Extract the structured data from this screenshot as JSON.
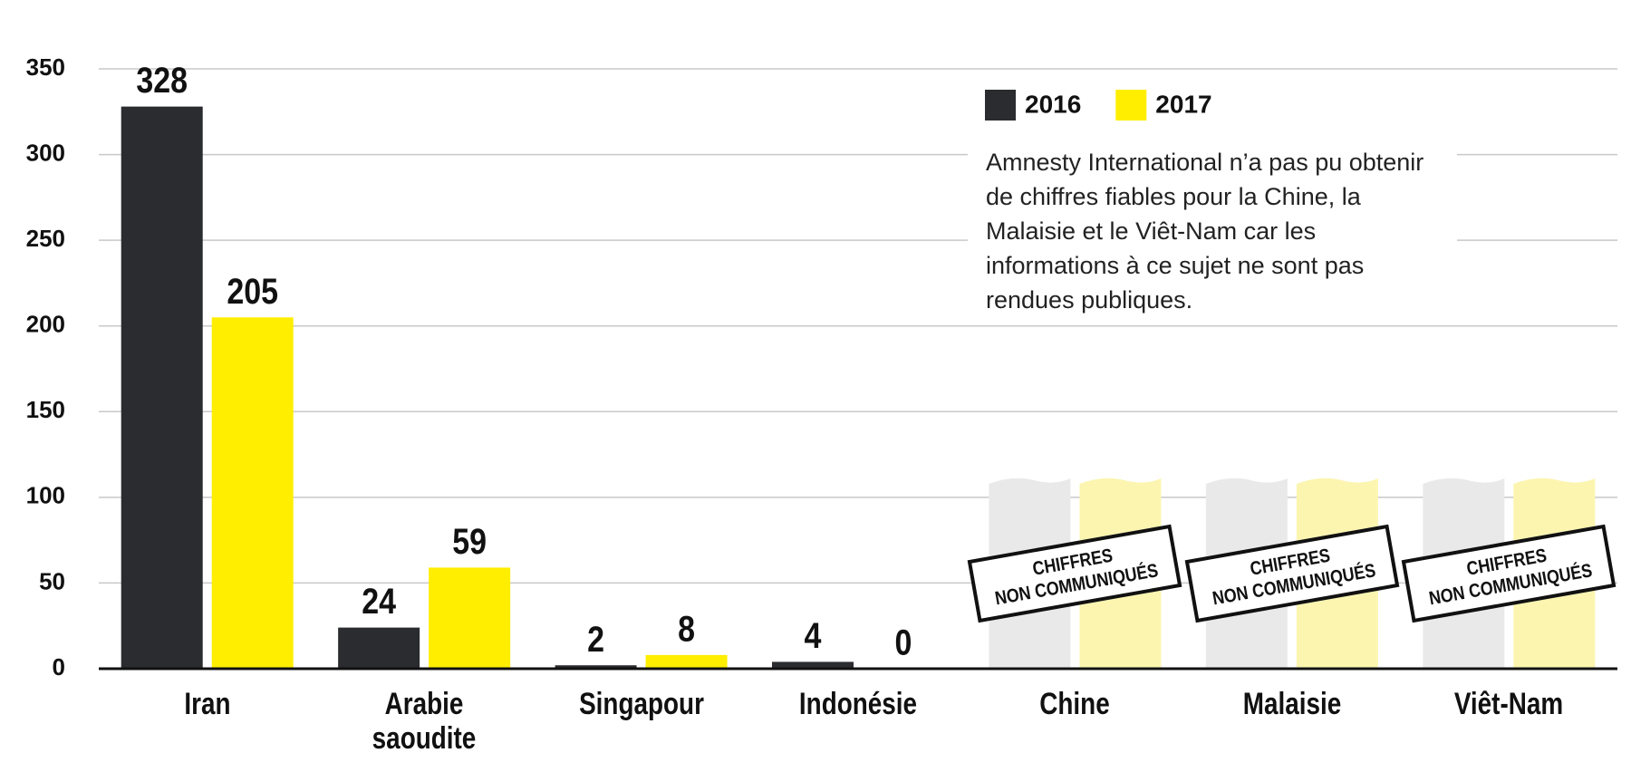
{
  "chart_data": {
    "type": "bar",
    "categories": [
      "Iran",
      "Arabie saoudite",
      "Singapour",
      "Indonésie",
      "Chine",
      "Malaisie",
      "Viêt-Nam"
    ],
    "series": [
      {
        "name": "2016",
        "color": "#2a2c2f",
        "values": [
          328,
          24,
          2,
          4,
          null,
          null,
          null
        ]
      },
      {
        "name": "2017",
        "color": "#ffee00",
        "values": [
          205,
          59,
          8,
          0,
          null,
          null,
          null
        ]
      }
    ],
    "ylim": [
      0,
      350
    ],
    "yticks": [
      0,
      50,
      100,
      150,
      200,
      250,
      300,
      350
    ],
    "grid": true,
    "legend_position": "top-right",
    "note": "Amnesty International n’a pas pu obtenir de chiffres fiables pour la Chine, la Malaisie et le Viêt-Nam car les informations à ce sujet ne sont pas rendues publiques.",
    "no_data_label": [
      "CHIFFRES",
      "NON COMMUNIQUÉS"
    ]
  }
}
